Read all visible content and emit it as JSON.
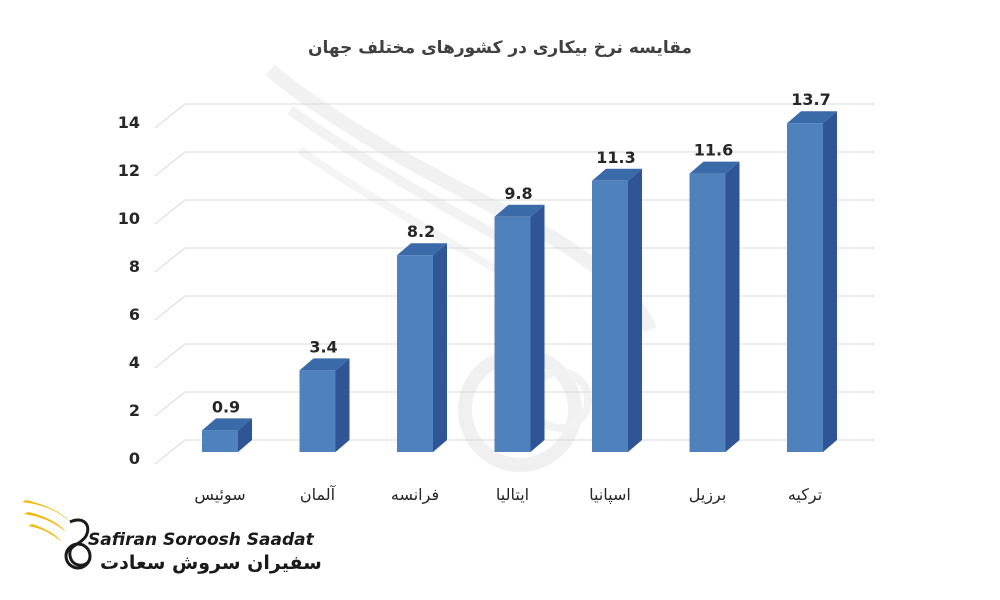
{
  "chart_data": {
    "type": "bar",
    "title": "مقایسه نرخ بیکاری در کشورهای مختلف جهان",
    "categories": [
      "سوئیس",
      "آلمان",
      "فرانسه",
      "ایتالیا",
      "اسپانیا",
      "برزیل",
      "ترکیه"
    ],
    "values": [
      0.9,
      3.4,
      8.2,
      9.8,
      11.3,
      11.6,
      13.7
    ],
    "ylim": [
      0,
      14
    ],
    "yticks": [
      0,
      2,
      4,
      6,
      8,
      10,
      12,
      14
    ],
    "grid": true,
    "bar_color": "#4f81bd",
    "bar_side_color": "#2f5597",
    "bar_top_color": "#3a6aa8"
  },
  "logo": {
    "latin": "Safiran Soroosh Saadat",
    "persian": "سفیران سروش سعادت",
    "accent_color": "#f2b705"
  }
}
